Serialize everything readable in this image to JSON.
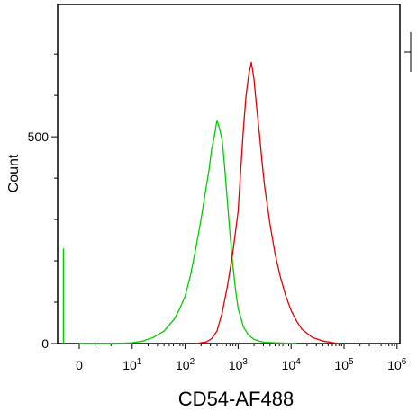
{
  "chart_data": {
    "type": "line",
    "title": "",
    "xlabel": "CD54-AF488",
    "ylabel": "Count",
    "x_scale": "biexponential",
    "xlim": [
      -0.3,
      6
    ],
    "ylim": [
      0,
      820
    ],
    "grid": false,
    "legend": "none",
    "x_tick_labels": [
      {
        "value": 0,
        "base": "0",
        "exp": ""
      },
      {
        "value": 1,
        "base": "10",
        "exp": "1"
      },
      {
        "value": 2,
        "base": "10",
        "exp": "2"
      },
      {
        "value": 3,
        "base": "10",
        "exp": "3"
      },
      {
        "value": 4,
        "base": "10",
        "exp": "4"
      },
      {
        "value": 5,
        "base": "10",
        "exp": "5"
      },
      {
        "value": 6,
        "base": "10",
        "exp": "6"
      }
    ],
    "y_ticks": [
      0,
      500
    ],
    "y_minor_ticks": [
      100,
      200,
      300,
      400,
      600,
      700
    ],
    "series": [
      {
        "color": "#00cc00",
        "x": [
          0.0,
          0.6,
          1.0,
          1.2,
          1.4,
          1.6,
          1.8,
          1.9,
          2.0,
          2.1,
          2.2,
          2.3,
          2.4,
          2.45,
          2.5,
          2.55,
          2.6,
          2.65,
          2.7,
          2.75,
          2.8,
          2.85,
          2.9,
          2.95,
          3.0,
          3.1,
          3.2,
          3.3,
          3.4,
          3.5,
          3.7,
          3.9,
          4.1
        ],
        "y": [
          0,
          0,
          2,
          6,
          15,
          30,
          60,
          85,
          115,
          165,
          230,
          300,
          380,
          420,
          470,
          500,
          540,
          520,
          490,
          420,
          340,
          260,
          190,
          130,
          85,
          40,
          20,
          10,
          6,
          3,
          2,
          1,
          0
        ]
      },
      {
        "color": "#e00000",
        "x": [
          2.2,
          2.4,
          2.5,
          2.6,
          2.7,
          2.8,
          2.9,
          3.0,
          3.05,
          3.1,
          3.15,
          3.2,
          3.25,
          3.3,
          3.35,
          3.4,
          3.45,
          3.5,
          3.6,
          3.7,
          3.8,
          3.9,
          4.0,
          4.1,
          4.2,
          4.4,
          4.6,
          4.8,
          4.9
        ],
        "y": [
          0,
          4,
          12,
          30,
          75,
          140,
          220,
          320,
          420,
          520,
          600,
          650,
          680,
          640,
          570,
          510,
          440,
          380,
          290,
          215,
          160,
          115,
          80,
          55,
          35,
          15,
          6,
          2,
          0
        ]
      },
      {
        "color": "#00cc00",
        "x": [
          -0.3,
          -0.3
        ],
        "y": [
          0,
          230
        ]
      }
    ]
  }
}
